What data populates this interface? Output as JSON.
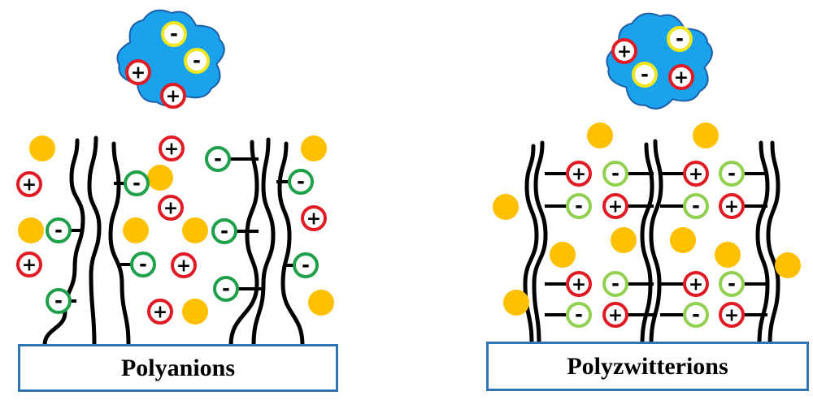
{
  "panels": [
    {
      "id": "polyanions",
      "label": "Polyanions"
    },
    {
      "id": "polyzwitterions",
      "label": "Polyzwitterions"
    }
  ],
  "symbols": {
    "positive": "+",
    "negative": "-"
  },
  "colors": {
    "protein_fill": "#1aa3ec",
    "protein_stroke": "#1f5fa8",
    "positive_ring": "#e01b24",
    "negative_ring_protein": "#f0e61e",
    "negative_ring_polyanion": "#1ea04b",
    "negative_ring_zwitterion": "#92d050",
    "counterion": "#ffc000",
    "box_border": "#2e75b6"
  }
}
